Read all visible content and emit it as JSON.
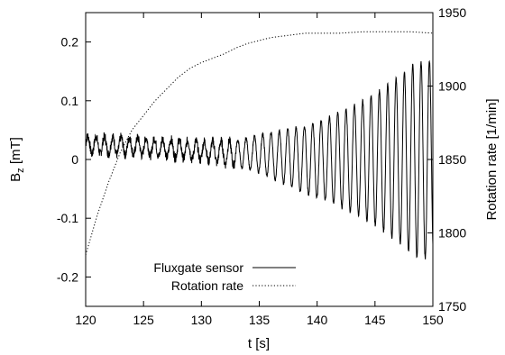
{
  "chart_data": {
    "type": "line",
    "xlabel": "t [s]",
    "ylabel_main": "B",
    "ylabel_sub": "z",
    "ylabel_unit": " [mT]",
    "y2label": "Rotation rate [1/min]",
    "xlim": [
      120,
      150
    ],
    "ylim": [
      -0.25,
      0.25
    ],
    "y2lim": [
      1750,
      1950
    ],
    "grid": false,
    "legend_position": "bottom-center",
    "x_ticks": [
      "120",
      "125",
      "130",
      "135",
      "140",
      "145",
      "150"
    ],
    "y_ticks": [
      "-0.2",
      "-0.1",
      "0",
      "0.1",
      "0.2"
    ],
    "y2_ticks": [
      "1750",
      "1800",
      "1850",
      "1900",
      "1950"
    ],
    "series": [
      {
        "name": "Fluxgate sensor",
        "axis": "left",
        "style": "solid",
        "color": "#000000",
        "envelope": {
          "t": [
            120,
            125,
            130,
            133,
            135,
            137,
            139,
            141,
            143,
            145,
            147,
            148.5,
            150
          ],
          "amplitude": [
            0.015,
            0.015,
            0.016,
            0.022,
            0.032,
            0.045,
            0.058,
            0.072,
            0.09,
            0.112,
            0.14,
            0.165,
            0.17
          ],
          "offset": [
            0.025,
            0.022,
            0.015,
            0.01,
            0.01,
            0.005,
            0.0,
            0.0,
            0.0,
            0.0,
            0.0,
            0.0,
            0.0
          ],
          "period_s": 0.72
        }
      },
      {
        "name": "Rotation rate",
        "axis": "right",
        "style": "dotted",
        "color": "#000000",
        "x": [
          120,
          121,
          122,
          123,
          124,
          125,
          126,
          127,
          128,
          129,
          130,
          131,
          132,
          133,
          134,
          135,
          136,
          137,
          138,
          139,
          140,
          142,
          144,
          146,
          148,
          150
        ],
        "y": [
          1785,
          1812,
          1835,
          1855,
          1870,
          1880,
          1890,
          1898,
          1906,
          1912,
          1916,
          1919,
          1922,
          1926,
          1929,
          1931,
          1933,
          1934,
          1935,
          1936,
          1936,
          1936,
          1937,
          1937,
          1937,
          1936
        ]
      }
    ]
  }
}
